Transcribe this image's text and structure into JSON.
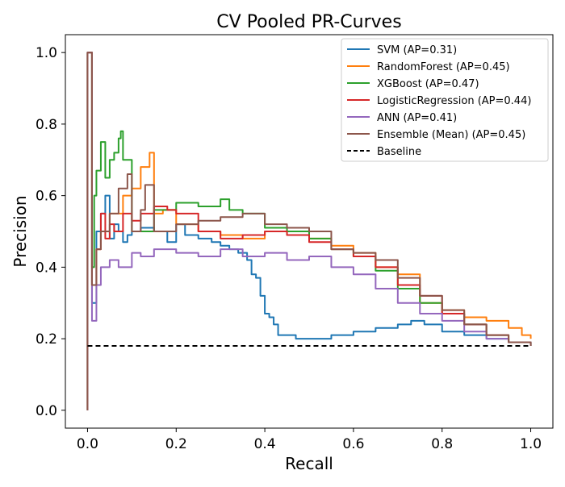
{
  "chart_data": {
    "type": "line",
    "title": "CV Pooled PR-Curves",
    "xlabel": "Recall",
    "ylabel": "Precision",
    "xlim": [
      -0.05,
      1.05
    ],
    "ylim": [
      -0.05,
      1.05
    ],
    "xticks": [
      0.0,
      0.2,
      0.4,
      0.6,
      0.8,
      1.0
    ],
    "yticks": [
      0.0,
      0.2,
      0.4,
      0.6,
      0.8,
      1.0
    ],
    "xtick_labels": [
      "0.0",
      "0.2",
      "0.4",
      "0.6",
      "0.8",
      "1.0"
    ],
    "ytick_labels": [
      "0.0",
      "0.2",
      "0.4",
      "0.6",
      "0.8",
      "1.0"
    ],
    "grid": false,
    "legend_position": "top-right",
    "series": [
      {
        "name": "SVM (AP=0.31)",
        "color": "#1f77b4",
        "x": [
          0.0,
          0.0,
          0.005,
          0.01,
          0.02,
          0.03,
          0.04,
          0.05,
          0.06,
          0.07,
          0.08,
          0.09,
          0.1,
          0.12,
          0.15,
          0.18,
          0.2,
          0.22,
          0.25,
          0.28,
          0.3,
          0.32,
          0.34,
          0.36,
          0.37,
          0.38,
          0.39,
          0.4,
          0.41,
          0.42,
          0.43,
          0.45,
          0.47,
          0.5,
          0.55,
          0.6,
          0.65,
          0.7,
          0.73,
          0.76,
          0.8,
          0.85,
          0.9,
          0.95,
          1.0
        ],
        "y": [
          0.0,
          1.0,
          1.0,
          0.3,
          0.5,
          0.55,
          0.6,
          0.48,
          0.52,
          0.5,
          0.47,
          0.49,
          0.5,
          0.51,
          0.5,
          0.47,
          0.52,
          0.49,
          0.48,
          0.47,
          0.46,
          0.45,
          0.44,
          0.42,
          0.38,
          0.37,
          0.32,
          0.27,
          0.26,
          0.24,
          0.21,
          0.21,
          0.2,
          0.2,
          0.21,
          0.22,
          0.23,
          0.24,
          0.25,
          0.24,
          0.22,
          0.21,
          0.2,
          0.19,
          0.18
        ]
      },
      {
        "name": "RandomForest (AP=0.45)",
        "color": "#ff7f0e",
        "x": [
          0.0,
          0.0,
          0.005,
          0.01,
          0.02,
          0.03,
          0.05,
          0.08,
          0.1,
          0.12,
          0.14,
          0.15,
          0.17,
          0.2,
          0.25,
          0.3,
          0.35,
          0.4,
          0.45,
          0.5,
          0.55,
          0.6,
          0.65,
          0.7,
          0.75,
          0.8,
          0.85,
          0.9,
          0.95,
          0.98,
          1.0
        ],
        "y": [
          0.0,
          1.0,
          1.0,
          0.35,
          0.45,
          0.5,
          0.55,
          0.6,
          0.62,
          0.68,
          0.72,
          0.55,
          0.56,
          0.52,
          0.5,
          0.49,
          0.48,
          0.5,
          0.49,
          0.48,
          0.46,
          0.44,
          0.4,
          0.38,
          0.3,
          0.28,
          0.26,
          0.25,
          0.23,
          0.21,
          0.2
        ]
      },
      {
        "name": "XGBoost (AP=0.47)",
        "color": "#2ca02c",
        "x": [
          0.0,
          0.0,
          0.005,
          0.01,
          0.015,
          0.02,
          0.03,
          0.04,
          0.05,
          0.06,
          0.07,
          0.075,
          0.08,
          0.1,
          0.15,
          0.2,
          0.25,
          0.3,
          0.32,
          0.35,
          0.4,
          0.45,
          0.5,
          0.55,
          0.6,
          0.65,
          0.7,
          0.75,
          0.8,
          0.85,
          0.9,
          0.95,
          1.0
        ],
        "y": [
          0.0,
          1.0,
          1.0,
          0.4,
          0.6,
          0.67,
          0.75,
          0.65,
          0.7,
          0.72,
          0.76,
          0.78,
          0.7,
          0.5,
          0.56,
          0.58,
          0.57,
          0.59,
          0.56,
          0.55,
          0.51,
          0.5,
          0.48,
          0.45,
          0.43,
          0.39,
          0.34,
          0.3,
          0.27,
          0.24,
          0.21,
          0.19,
          0.18
        ]
      },
      {
        "name": "LogisticRegression (AP=0.44)",
        "color": "#d62728",
        "x": [
          0.0,
          0.0,
          0.005,
          0.01,
          0.02,
          0.03,
          0.04,
          0.05,
          0.06,
          0.08,
          0.1,
          0.12,
          0.15,
          0.18,
          0.2,
          0.25,
          0.3,
          0.35,
          0.4,
          0.45,
          0.5,
          0.55,
          0.6,
          0.65,
          0.7,
          0.75,
          0.8,
          0.85,
          0.9,
          0.95,
          1.0
        ],
        "y": [
          0.0,
          1.0,
          1.0,
          0.35,
          0.45,
          0.55,
          0.48,
          0.52,
          0.5,
          0.55,
          0.53,
          0.55,
          0.57,
          0.56,
          0.55,
          0.5,
          0.48,
          0.49,
          0.5,
          0.49,
          0.47,
          0.45,
          0.43,
          0.4,
          0.35,
          0.32,
          0.27,
          0.24,
          0.21,
          0.19,
          0.18
        ]
      },
      {
        "name": "ANN (AP=0.41)",
        "color": "#9467bd",
        "x": [
          0.0,
          0.0,
          0.005,
          0.01,
          0.02,
          0.03,
          0.05,
          0.07,
          0.1,
          0.12,
          0.15,
          0.2,
          0.25,
          0.3,
          0.35,
          0.4,
          0.45,
          0.5,
          0.55,
          0.6,
          0.65,
          0.7,
          0.75,
          0.8,
          0.85,
          0.9,
          0.95,
          1.0
        ],
        "y": [
          0.0,
          1.0,
          1.0,
          0.25,
          0.35,
          0.4,
          0.42,
          0.4,
          0.44,
          0.43,
          0.45,
          0.44,
          0.43,
          0.45,
          0.43,
          0.44,
          0.42,
          0.43,
          0.4,
          0.38,
          0.34,
          0.3,
          0.27,
          0.25,
          0.22,
          0.2,
          0.19,
          0.18
        ]
      },
      {
        "name": "Ensemble (Mean) (AP=0.45)",
        "color": "#8c564b",
        "x": [
          0.0,
          0.0,
          0.005,
          0.01,
          0.02,
          0.03,
          0.05,
          0.07,
          0.09,
          0.1,
          0.12,
          0.13,
          0.15,
          0.2,
          0.25,
          0.3,
          0.35,
          0.4,
          0.45,
          0.5,
          0.55,
          0.6,
          0.65,
          0.7,
          0.75,
          0.8,
          0.85,
          0.9,
          0.95,
          1.0
        ],
        "y": [
          0.0,
          1.0,
          1.0,
          0.35,
          0.45,
          0.5,
          0.55,
          0.62,
          0.66,
          0.5,
          0.56,
          0.63,
          0.5,
          0.52,
          0.53,
          0.54,
          0.55,
          0.52,
          0.51,
          0.5,
          0.45,
          0.44,
          0.42,
          0.37,
          0.32,
          0.28,
          0.24,
          0.21,
          0.19,
          0.18
        ]
      }
    ],
    "baseline": {
      "name": "Baseline",
      "color": "#000000",
      "y": 0.18,
      "x_range": [
        0.0,
        1.0
      ],
      "style": "dashed"
    }
  }
}
